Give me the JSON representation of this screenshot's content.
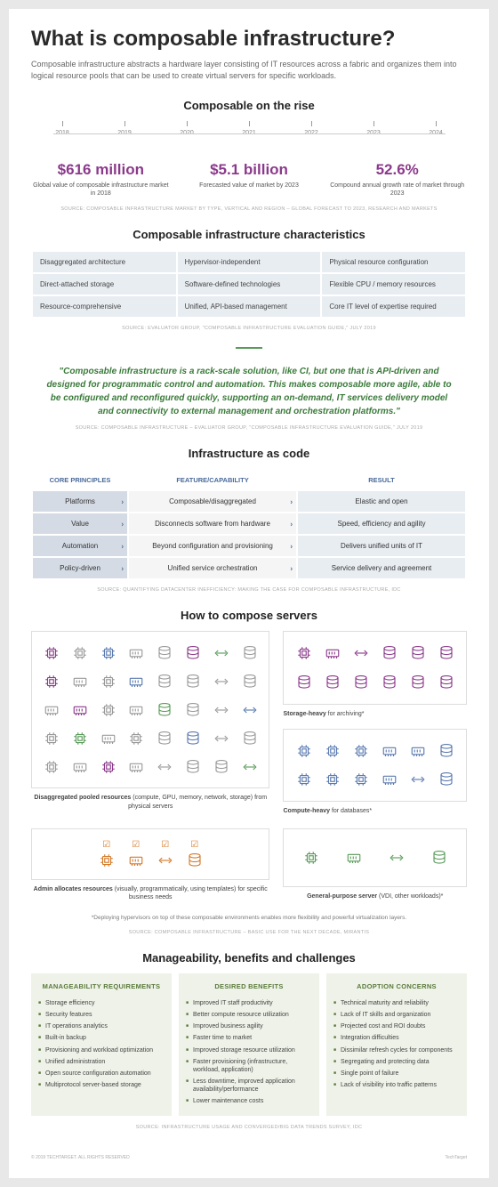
{
  "title": "What is composable infrastructure?",
  "subtitle": "Composable infrastructure abstracts a hardware layer consisting of IT resources across a fabric and organizes them into logical resource pools that can be used to create virtual servers for specific workloads.",
  "timeline": {
    "title": "Composable on the rise",
    "years": [
      "2018",
      "2019",
      "2020",
      "2021",
      "2022",
      "2023",
      "2024"
    ]
  },
  "stats": [
    {
      "value": "$616 million",
      "label": "Global value of composable infrastructure market in 2018"
    },
    {
      "value": "$5.1 billion",
      "label": "Forecasted value of market by 2023"
    },
    {
      "value": "52.6%",
      "label": "Compound annual growth rate of market through 2023"
    }
  ],
  "stats_source": "SOURCE: COMPOSABLE INFRASTRUCTURE MARKET BY TYPE, VERTICAL AND REGION – GLOBAL FORECAST TO 2023, RESEARCH AND MARKETS",
  "characteristics": {
    "title": "Composable  infrastructure characteristics",
    "rows": [
      [
        "Disaggregated architecture",
        "Hypervisor-independent",
        "Physical resource configuration"
      ],
      [
        "Direct-attached storage",
        "Software-defined technologies",
        "Flexible CPU / memory resources"
      ],
      [
        "Resource-comprehensive",
        "Unified, API-based management",
        "Core IT level of expertise required"
      ]
    ],
    "source": "SOURCE: EVALUATOR GROUP, \"COMPOSABLE INFRASTRUCTURE EVALUATION GUIDE,\" JULY 2019"
  },
  "quote": {
    "text": "\"Composable infrastructure is a rack-scale solution, like CI, but one that is API-driven and designed for programmatic control and automation. This makes composable more agile, able to be configured and reconfigured quickly, supporting an on-demand, IT services delivery model and connectivity to external management and orchestration platforms.\"",
    "source": "SOURCE: COMPOSABLE INFRASTRUCTURE – EVALUATOR GROUP, \"COMPOSABLE INFRASTRUCTURE EVALUATION GUIDE,\" JULY 2019"
  },
  "iac": {
    "title": "Infrastructure as code",
    "headers": [
      "CORE PRINCIPLES",
      "FEATURE/CAPABILITY",
      "RESULT"
    ],
    "rows": [
      [
        "Platforms",
        "Composable/disaggregated",
        "Elastic and open"
      ],
      [
        "Value",
        "Disconnects software from hardware",
        "Speed, efficiency and agility"
      ],
      [
        "Automation",
        "Beyond configuration and provisioning",
        "Delivers unified units of IT"
      ],
      [
        "Policy-driven",
        "Unified service orchestration",
        "Service delivery and agreement"
      ]
    ],
    "source": "SOURCE: QUANTIFYING DATACENTER INEFFICIENCY: MAKING THE CASE FOR COMPOSABLE INFRASTRUCTURE, IDC"
  },
  "compose": {
    "title": "How to compose servers",
    "pooled_label_bold": "Disaggregated pooled resources",
    "pooled_label": " (compute, GPU, memory, network, storage) from physical servers",
    "storage_label_bold": "Storage-heavy",
    "storage_label": " for archiving*",
    "compute_label_bold": "Compute-heavy",
    "compute_label": " for databases*",
    "admin_label_bold": "Admin allocates resources",
    "admin_label": " (visually, programmatically, using templates) for specific business needs",
    "gp_label_bold": "General-purpose server",
    "gp_label": " (VDI, other workloads)*",
    "footnote": "*Deploying hypervisors on top of these composable environments enables more flexibility and powerful virtualization layers.",
    "source": "SOURCE: COMPOSABLE INFRASTRUCTURE – BASIC USE FOR THE NEXT DECADE, MIRANTIS"
  },
  "mbc": {
    "title": "Manageability, benefits and challenges",
    "cols": [
      {
        "title": "MANAGEABILITY REQUIREMENTS",
        "items": [
          "Storage efficiency",
          "Security features",
          "IT operations analytics",
          "Built-in backup",
          "Provisioning and workload optimization",
          "Unified administration",
          "Open source configuration automation",
          "Multiprotocol server-based storage"
        ]
      },
      {
        "title": "DESIRED BENEFITS",
        "items": [
          "Improved IT staff productivity",
          "Better compute resource utilization",
          "Improved business agility",
          "Faster time to market",
          "Improved storage resource utilization",
          "Faster provisioning (infrastructure, workload, application)",
          "Less downtime, improved application availability/performance",
          "Lower maintenance costs"
        ]
      },
      {
        "title": "ADOPTION CONCERNS",
        "items": [
          "Technical maturity and reliability",
          "Lack of IT skills and organization",
          "Projected cost and ROI doubts",
          "Integration difficulties",
          "Dissimilar refresh cycles for components",
          "Segregating and protecting data",
          "Single point of failure",
          "Lack of visibility into traffic patterns"
        ]
      }
    ],
    "source": "SOURCE: INFRASTRUCTURE USAGE AND CONVERGED/BIG DATA TRENDS SURVEY, IDC"
  },
  "colors": {
    "purple": "#8b3a8b",
    "green": "#5a9b5a",
    "blue": "#5a7ab0",
    "orange": "#d47a2a",
    "gray": "#999"
  },
  "footer": {
    "left": "© 2019 TECHTARGET. ALL RIGHTS RESERVED",
    "right": "TechTarget"
  }
}
